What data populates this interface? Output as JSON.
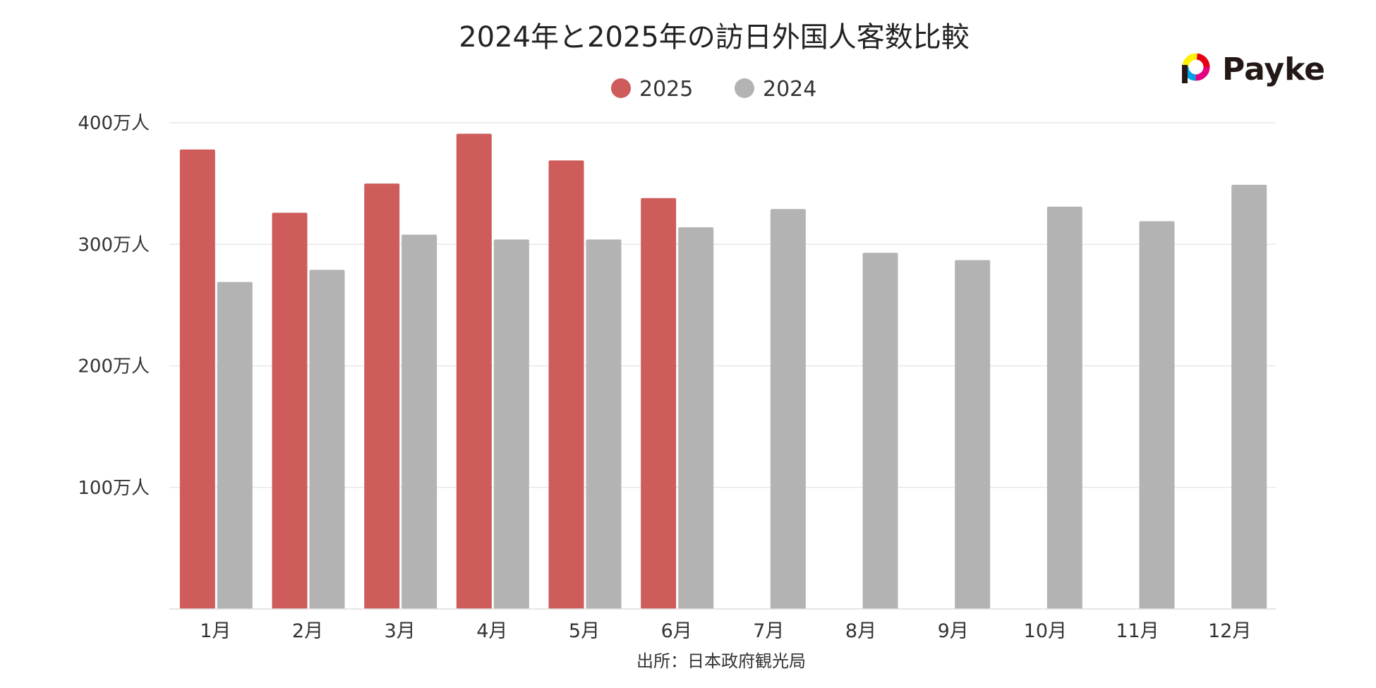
{
  "chart_data": {
    "type": "bar",
    "title": "2024年と2025年の訪日外国人客数比較",
    "categories": [
      "1月",
      "2月",
      "3月",
      "4月",
      "5月",
      "6月",
      "7月",
      "8月",
      "9月",
      "10月",
      "11月",
      "12月"
    ],
    "series": [
      {
        "name": "2025",
        "color": "#cd5c5a",
        "values": [
          378,
          326,
          350,
          391,
          369,
          338,
          null,
          null,
          null,
          null,
          null,
          null
        ]
      },
      {
        "name": "2024",
        "color": "#b3b3b3",
        "values": [
          269,
          279,
          308,
          304,
          304,
          314,
          329,
          293,
          287,
          331,
          319,
          349
        ]
      }
    ],
    "ylim": [
      0,
      400
    ],
    "yticks": [
      100,
      200,
      300,
      400
    ],
    "ytick_labels": [
      "100万人",
      "200万人",
      "300万人",
      "400万人"
    ],
    "xlabel": "",
    "ylabel": "",
    "grid": true,
    "legend_position": "top-center"
  },
  "source": "出所：日本政府観光局",
  "brand": {
    "name": "Payke",
    "logo_colors": [
      "#e4007f",
      "#00a0e9",
      "#fff100",
      "#e60012",
      "#231815"
    ]
  }
}
